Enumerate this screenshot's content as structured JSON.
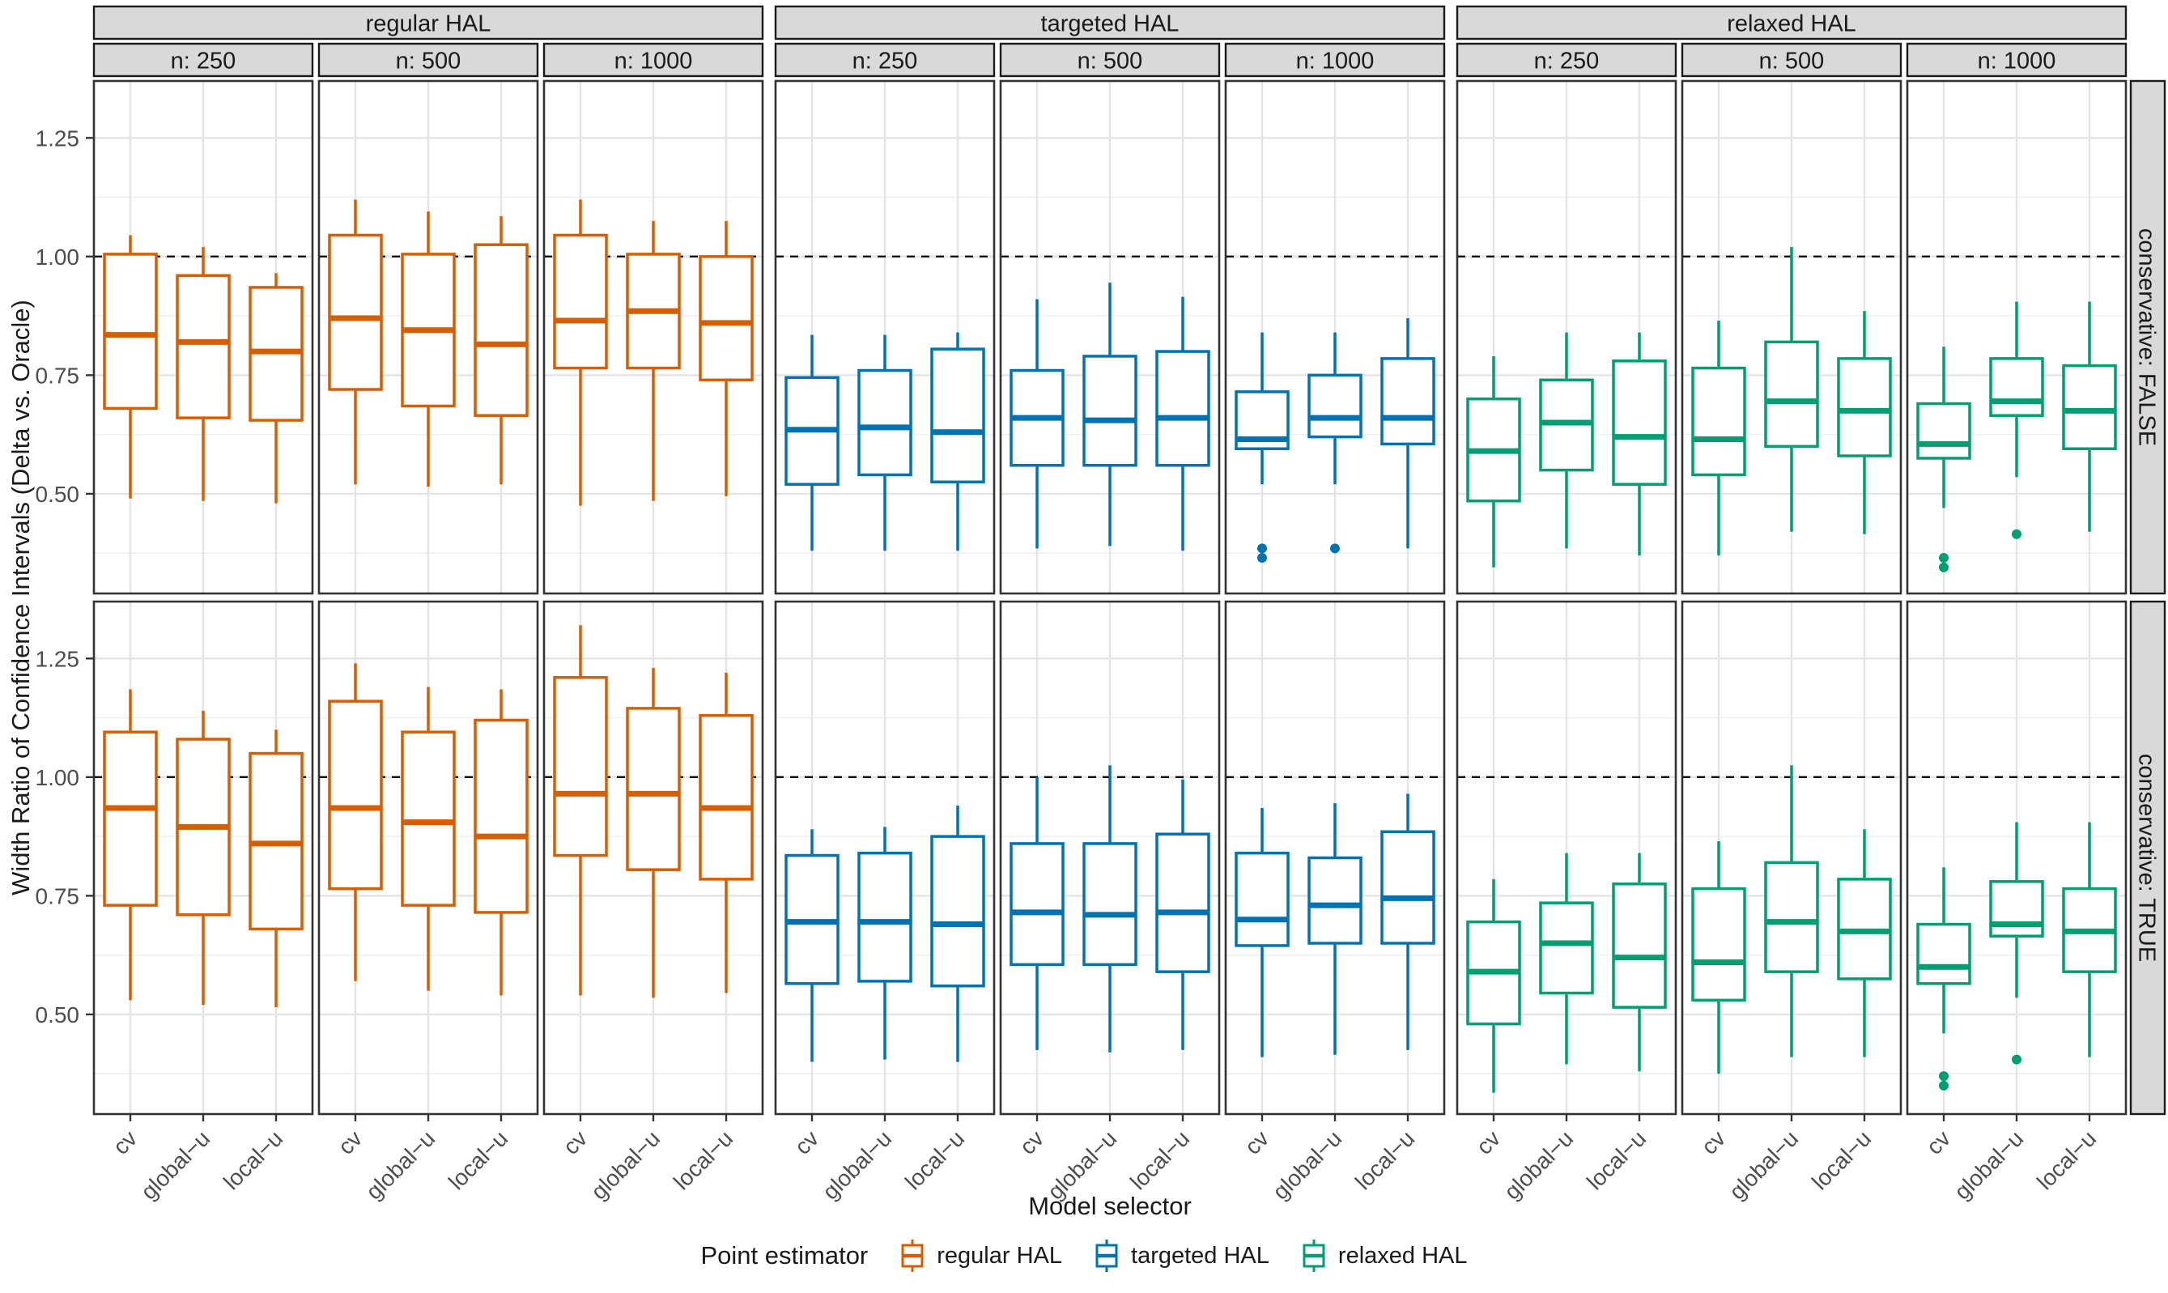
{
  "figure": {
    "y_axis": {
      "title": "Width Ratio of Confidence Intervals (Delta vs. Oracle)",
      "tick_labels": [
        "1.25",
        "1.00",
        "0.75",
        "0.50"
      ],
      "tick_values": [
        1.25,
        1.0,
        0.75,
        0.5
      ],
      "minor_grid_values": [
        1.125,
        0.875,
        0.625,
        0.375
      ],
      "limits": [
        0.29,
        1.37
      ]
    },
    "x_axis": {
      "title": "Model selector",
      "categories": [
        "cv",
        "global−u",
        "local−u"
      ]
    },
    "column_facets": [
      "regular HAL",
      "targeted HAL",
      "relaxed HAL"
    ],
    "subcolumn_facets": [
      "n: 250",
      "n: 500",
      "n: 1000"
    ],
    "row_facets": [
      "conservative: FALSE",
      "conservative: TRUE"
    ],
    "reference_line": 1.0,
    "legend": {
      "title": "Point estimator",
      "entries": [
        {
          "label": "regular HAL",
          "color": "#D55E00"
        },
        {
          "label": "targeted HAL",
          "color": "#0072B2"
        },
        {
          "label": "relaxed HAL",
          "color": "#009E73"
        }
      ]
    },
    "style": {
      "strip_bg": "#D9D9D9",
      "strip_border": "#1a1a1a",
      "panel_border": "#333333",
      "grid_major": "#E4E4E4",
      "grid_minor": "#EFEFEF",
      "tick_text": "#4D4D4D",
      "axis_title_text": "#1a1a1a",
      "strip_text": "#1a1a1a",
      "ref_line": "#000000",
      "panel_bg": "#FFFFFF"
    }
  },
  "chart_data": {
    "type": "boxplot",
    "title": "",
    "x_categories": [
      "cv",
      "global−u",
      "local−u"
    ],
    "y_limits": [
      0.29,
      1.37
    ],
    "reference_line": 1.0,
    "grid": "on",
    "legend_position": "bottom",
    "panels": [
      {
        "row": "conservative: FALSE",
        "col": "regular HAL",
        "n": "n: 250",
        "color": "#D55E00",
        "boxes": [
          {
            "x": "cv",
            "lo": 0.49,
            "q1": 0.68,
            "med": 0.835,
            "q3": 1.005,
            "hi": 1.045,
            "outliers": []
          },
          {
            "x": "global−u",
            "lo": 0.485,
            "q1": 0.66,
            "med": 0.82,
            "q3": 0.96,
            "hi": 1.02,
            "outliers": []
          },
          {
            "x": "local−u",
            "lo": 0.48,
            "q1": 0.655,
            "med": 0.8,
            "q3": 0.935,
            "hi": 0.965,
            "outliers": []
          }
        ]
      },
      {
        "row": "conservative: FALSE",
        "col": "regular HAL",
        "n": "n: 500",
        "color": "#D55E00",
        "boxes": [
          {
            "x": "cv",
            "lo": 0.52,
            "q1": 0.72,
            "med": 0.87,
            "q3": 1.045,
            "hi": 1.12,
            "outliers": []
          },
          {
            "x": "global−u",
            "lo": 0.515,
            "q1": 0.685,
            "med": 0.845,
            "q3": 1.005,
            "hi": 1.095,
            "outliers": []
          },
          {
            "x": "local−u",
            "lo": 0.52,
            "q1": 0.665,
            "med": 0.815,
            "q3": 1.025,
            "hi": 1.085,
            "outliers": []
          }
        ]
      },
      {
        "row": "conservative: FALSE",
        "col": "regular HAL",
        "n": "n: 1000",
        "color": "#D55E00",
        "boxes": [
          {
            "x": "cv",
            "lo": 0.475,
            "q1": 0.765,
            "med": 0.865,
            "q3": 1.045,
            "hi": 1.12,
            "outliers": []
          },
          {
            "x": "global−u",
            "lo": 0.485,
            "q1": 0.765,
            "med": 0.885,
            "q3": 1.005,
            "hi": 1.075,
            "outliers": []
          },
          {
            "x": "local−u",
            "lo": 0.495,
            "q1": 0.74,
            "med": 0.86,
            "q3": 1.0,
            "hi": 1.075,
            "outliers": []
          }
        ]
      },
      {
        "row": "conservative: FALSE",
        "col": "targeted HAL",
        "n": "n: 250",
        "color": "#0072B2",
        "boxes": [
          {
            "x": "cv",
            "lo": 0.38,
            "q1": 0.52,
            "med": 0.635,
            "q3": 0.745,
            "hi": 0.835,
            "outliers": []
          },
          {
            "x": "global−u",
            "lo": 0.38,
            "q1": 0.54,
            "med": 0.64,
            "q3": 0.76,
            "hi": 0.835,
            "outliers": []
          },
          {
            "x": "local−u",
            "lo": 0.38,
            "q1": 0.525,
            "med": 0.63,
            "q3": 0.805,
            "hi": 0.84,
            "outliers": []
          }
        ]
      },
      {
        "row": "conservative: FALSE",
        "col": "targeted HAL",
        "n": "n: 500",
        "color": "#0072B2",
        "boxes": [
          {
            "x": "cv",
            "lo": 0.385,
            "q1": 0.56,
            "med": 0.66,
            "q3": 0.76,
            "hi": 0.91,
            "outliers": []
          },
          {
            "x": "global−u",
            "lo": 0.39,
            "q1": 0.56,
            "med": 0.655,
            "q3": 0.79,
            "hi": 0.945,
            "outliers": []
          },
          {
            "x": "local−u",
            "lo": 0.38,
            "q1": 0.56,
            "med": 0.66,
            "q3": 0.8,
            "hi": 0.915,
            "outliers": []
          }
        ]
      },
      {
        "row": "conservative: FALSE",
        "col": "targeted HAL",
        "n": "n: 1000",
        "color": "#0072B2",
        "boxes": [
          {
            "x": "cv",
            "lo": 0.52,
            "q1": 0.595,
            "med": 0.615,
            "q3": 0.715,
            "hi": 0.84,
            "outliers": [
              0.385,
              0.365
            ]
          },
          {
            "x": "global−u",
            "lo": 0.52,
            "q1": 0.62,
            "med": 0.66,
            "q3": 0.75,
            "hi": 0.84,
            "outliers": [
              0.385
            ]
          },
          {
            "x": "local−u",
            "lo": 0.385,
            "q1": 0.605,
            "med": 0.66,
            "q3": 0.785,
            "hi": 0.87,
            "outliers": []
          }
        ]
      },
      {
        "row": "conservative: FALSE",
        "col": "relaxed HAL",
        "n": "n: 250",
        "color": "#009E73",
        "boxes": [
          {
            "x": "cv",
            "lo": 0.345,
            "q1": 0.485,
            "med": 0.59,
            "q3": 0.7,
            "hi": 0.79,
            "outliers": []
          },
          {
            "x": "global−u",
            "lo": 0.385,
            "q1": 0.55,
            "med": 0.65,
            "q3": 0.74,
            "hi": 0.84,
            "outliers": []
          },
          {
            "x": "local−u",
            "lo": 0.37,
            "q1": 0.52,
            "med": 0.62,
            "q3": 0.78,
            "hi": 0.84,
            "outliers": []
          }
        ]
      },
      {
        "row": "conservative: FALSE",
        "col": "relaxed HAL",
        "n": "n: 500",
        "color": "#009E73",
        "boxes": [
          {
            "x": "cv",
            "lo": 0.37,
            "q1": 0.54,
            "med": 0.615,
            "q3": 0.765,
            "hi": 0.865,
            "outliers": []
          },
          {
            "x": "global−u",
            "lo": 0.42,
            "q1": 0.6,
            "med": 0.695,
            "q3": 0.82,
            "hi": 1.02,
            "outliers": []
          },
          {
            "x": "local−u",
            "lo": 0.415,
            "q1": 0.58,
            "med": 0.675,
            "q3": 0.785,
            "hi": 0.885,
            "outliers": []
          }
        ]
      },
      {
        "row": "conservative: FALSE",
        "col": "relaxed HAL",
        "n": "n: 1000",
        "color": "#009E73",
        "boxes": [
          {
            "x": "cv",
            "lo": 0.47,
            "q1": 0.575,
            "med": 0.605,
            "q3": 0.69,
            "hi": 0.81,
            "outliers": [
              0.365,
              0.345
            ]
          },
          {
            "x": "global−u",
            "lo": 0.535,
            "q1": 0.665,
            "med": 0.695,
            "q3": 0.785,
            "hi": 0.905,
            "outliers": [
              0.415
            ]
          },
          {
            "x": "local−u",
            "lo": 0.42,
            "q1": 0.595,
            "med": 0.675,
            "q3": 0.77,
            "hi": 0.905,
            "outliers": []
          }
        ]
      },
      {
        "row": "conservative: TRUE",
        "col": "regular HAL",
        "n": "n: 250",
        "color": "#D55E00",
        "boxes": [
          {
            "x": "cv",
            "lo": 0.53,
            "q1": 0.73,
            "med": 0.935,
            "q3": 1.095,
            "hi": 1.185,
            "outliers": []
          },
          {
            "x": "global−u",
            "lo": 0.52,
            "q1": 0.71,
            "med": 0.895,
            "q3": 1.08,
            "hi": 1.14,
            "outliers": []
          },
          {
            "x": "local−u",
            "lo": 0.515,
            "q1": 0.68,
            "med": 0.86,
            "q3": 1.05,
            "hi": 1.1,
            "outliers": []
          }
        ]
      },
      {
        "row": "conservative: TRUE",
        "col": "regular HAL",
        "n": "n: 500",
        "color": "#D55E00",
        "boxes": [
          {
            "x": "cv",
            "lo": 0.57,
            "q1": 0.765,
            "med": 0.935,
            "q3": 1.16,
            "hi": 1.24,
            "outliers": []
          },
          {
            "x": "global−u",
            "lo": 0.55,
            "q1": 0.73,
            "med": 0.905,
            "q3": 1.095,
            "hi": 1.19,
            "outliers": []
          },
          {
            "x": "local−u",
            "lo": 0.54,
            "q1": 0.715,
            "med": 0.875,
            "q3": 1.12,
            "hi": 1.185,
            "outliers": []
          }
        ]
      },
      {
        "row": "conservative: TRUE",
        "col": "regular HAL",
        "n": "n: 1000",
        "color": "#D55E00",
        "boxes": [
          {
            "x": "cv",
            "lo": 0.54,
            "q1": 0.835,
            "med": 0.965,
            "q3": 1.21,
            "hi": 1.32,
            "outliers": []
          },
          {
            "x": "global−u",
            "lo": 0.535,
            "q1": 0.805,
            "med": 0.965,
            "q3": 1.145,
            "hi": 1.23,
            "outliers": []
          },
          {
            "x": "local−u",
            "lo": 0.545,
            "q1": 0.785,
            "med": 0.935,
            "q3": 1.13,
            "hi": 1.22,
            "outliers": []
          }
        ]
      },
      {
        "row": "conservative: TRUE",
        "col": "targeted HAL",
        "n": "n: 250",
        "color": "#0072B2",
        "boxes": [
          {
            "x": "cv",
            "lo": 0.4,
            "q1": 0.565,
            "med": 0.695,
            "q3": 0.835,
            "hi": 0.89,
            "outliers": []
          },
          {
            "x": "global−u",
            "lo": 0.405,
            "q1": 0.57,
            "med": 0.695,
            "q3": 0.84,
            "hi": 0.895,
            "outliers": []
          },
          {
            "x": "local−u",
            "lo": 0.4,
            "q1": 0.56,
            "med": 0.69,
            "q3": 0.875,
            "hi": 0.94,
            "outliers": []
          }
        ]
      },
      {
        "row": "conservative: TRUE",
        "col": "targeted HAL",
        "n": "n: 500",
        "color": "#0072B2",
        "boxes": [
          {
            "x": "cv",
            "lo": 0.425,
            "q1": 0.605,
            "med": 0.715,
            "q3": 0.86,
            "hi": 1.0,
            "outliers": []
          },
          {
            "x": "global−u",
            "lo": 0.42,
            "q1": 0.605,
            "med": 0.71,
            "q3": 0.86,
            "hi": 1.025,
            "outliers": []
          },
          {
            "x": "local−u",
            "lo": 0.425,
            "q1": 0.59,
            "med": 0.715,
            "q3": 0.88,
            "hi": 0.995,
            "outliers": []
          }
        ]
      },
      {
        "row": "conservative: TRUE",
        "col": "targeted HAL",
        "n": "n: 1000",
        "color": "#0072B2",
        "boxes": [
          {
            "x": "cv",
            "lo": 0.41,
            "q1": 0.645,
            "med": 0.7,
            "q3": 0.84,
            "hi": 0.935,
            "outliers": []
          },
          {
            "x": "global−u",
            "lo": 0.415,
            "q1": 0.65,
            "med": 0.73,
            "q3": 0.83,
            "hi": 0.945,
            "outliers": []
          },
          {
            "x": "local−u",
            "lo": 0.425,
            "q1": 0.65,
            "med": 0.745,
            "q3": 0.885,
            "hi": 0.965,
            "outliers": []
          }
        ]
      },
      {
        "row": "conservative: TRUE",
        "col": "relaxed HAL",
        "n": "n: 250",
        "color": "#009E73",
        "boxes": [
          {
            "x": "cv",
            "lo": 0.335,
            "q1": 0.48,
            "med": 0.59,
            "q3": 0.695,
            "hi": 0.785,
            "outliers": []
          },
          {
            "x": "global−u",
            "lo": 0.395,
            "q1": 0.545,
            "med": 0.65,
            "q3": 0.735,
            "hi": 0.84,
            "outliers": []
          },
          {
            "x": "local−u",
            "lo": 0.38,
            "q1": 0.515,
            "med": 0.62,
            "q3": 0.775,
            "hi": 0.84,
            "outliers": []
          }
        ]
      },
      {
        "row": "conservative: TRUE",
        "col": "relaxed HAL",
        "n": "n: 500",
        "color": "#009E73",
        "boxes": [
          {
            "x": "cv",
            "lo": 0.375,
            "q1": 0.53,
            "med": 0.61,
            "q3": 0.765,
            "hi": 0.865,
            "outliers": []
          },
          {
            "x": "global−u",
            "lo": 0.41,
            "q1": 0.59,
            "med": 0.695,
            "q3": 0.82,
            "hi": 1.025,
            "outliers": []
          },
          {
            "x": "local−u",
            "lo": 0.41,
            "q1": 0.575,
            "med": 0.675,
            "q3": 0.785,
            "hi": 0.89,
            "outliers": []
          }
        ]
      },
      {
        "row": "conservative: TRUE",
        "col": "relaxed HAL",
        "n": "n: 1000",
        "color": "#009E73",
        "boxes": [
          {
            "x": "cv",
            "lo": 0.46,
            "q1": 0.565,
            "med": 0.6,
            "q3": 0.69,
            "hi": 0.81,
            "outliers": [
              0.37,
              0.35
            ]
          },
          {
            "x": "global−u",
            "lo": 0.535,
            "q1": 0.665,
            "med": 0.69,
            "q3": 0.78,
            "hi": 0.905,
            "outliers": [
              0.405
            ]
          },
          {
            "x": "local−u",
            "lo": 0.41,
            "q1": 0.59,
            "med": 0.675,
            "q3": 0.765,
            "hi": 0.905,
            "outliers": []
          }
        ]
      }
    ]
  }
}
